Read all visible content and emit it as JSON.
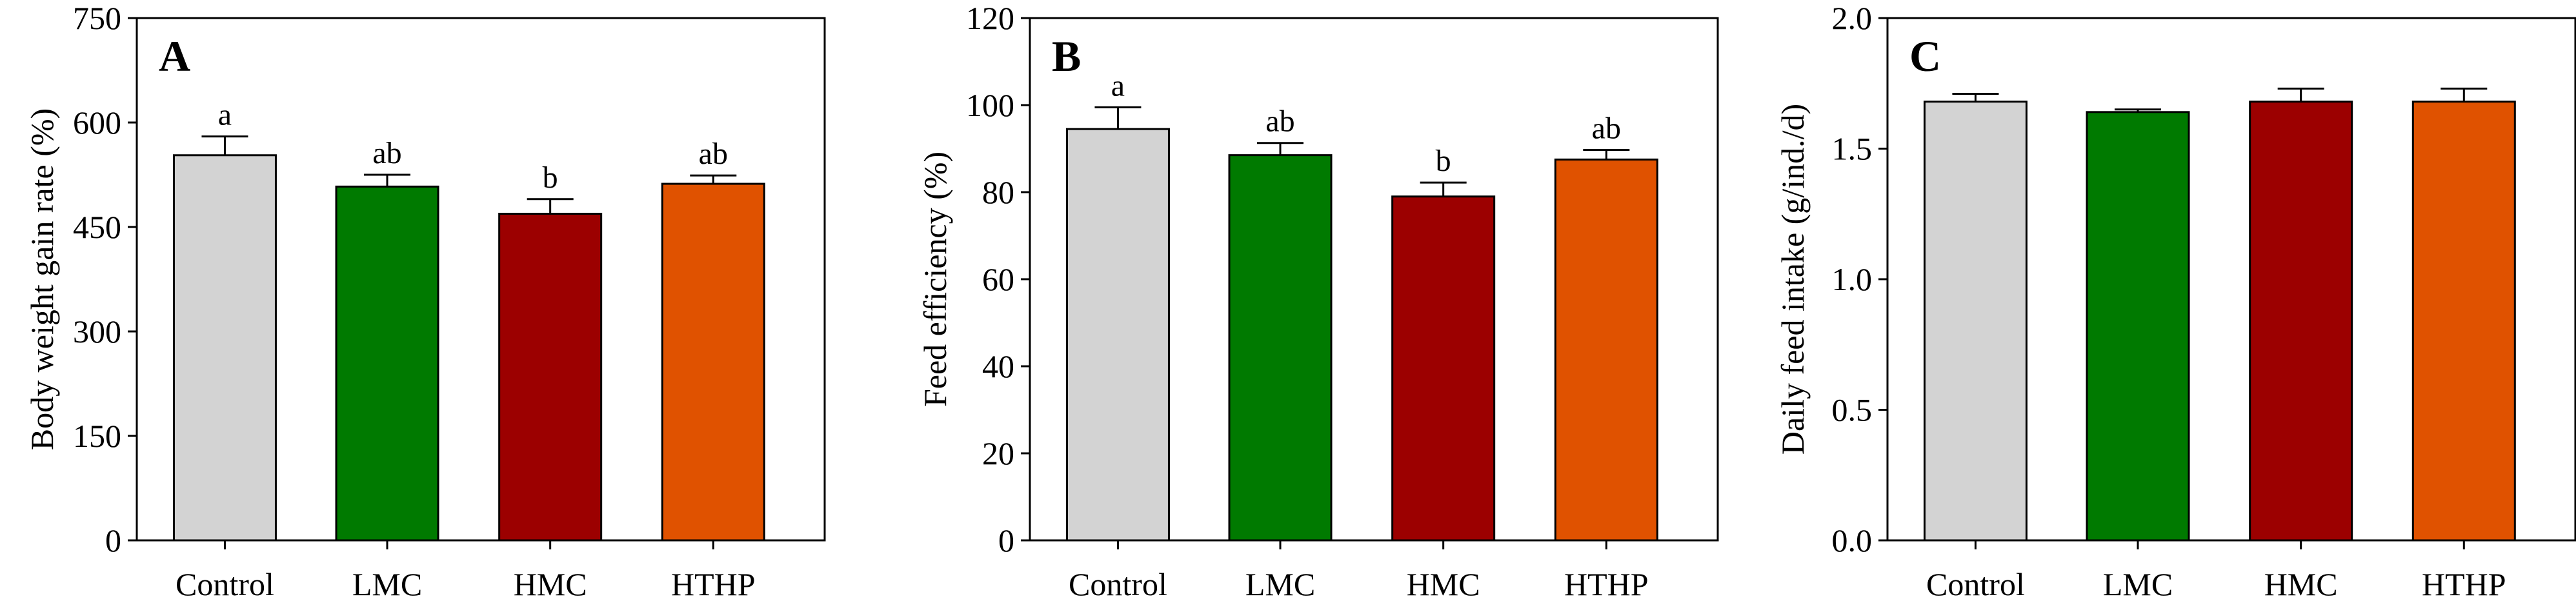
{
  "colors": {
    "Control": "#d3d3d3",
    "LMC": "#007a00",
    "HMC": "#9c0000",
    "HTHP": "#e05200",
    "stroke": "#000000"
  },
  "chart_data": [
    {
      "type": "bar",
      "panel_label": "A",
      "title": "",
      "xlabel": "",
      "ylabel": "Body weight gain rate (%)",
      "ylim": [
        0,
        750
      ],
      "yticks": [
        0,
        150,
        300,
        450,
        600,
        750
      ],
      "categories": [
        "Control",
        "LMC",
        "HMC",
        "HTHP"
      ],
      "values": [
        553,
        508,
        469,
        512
      ],
      "errors": [
        27,
        17,
        21,
        12
      ],
      "significance": [
        "a",
        "ab",
        "b",
        "ab"
      ]
    },
    {
      "type": "bar",
      "panel_label": "B",
      "title": "",
      "xlabel": "",
      "ylabel": "Feed efficiency (%)",
      "ylim": [
        0,
        120
      ],
      "yticks": [
        0,
        20,
        40,
        60,
        80,
        100,
        120
      ],
      "categories": [
        "Control",
        "LMC",
        "HMC",
        "HTHP"
      ],
      "values": [
        94.5,
        88.5,
        79,
        87.5
      ],
      "errors": [
        5,
        2.8,
        3.2,
        2.2
      ],
      "significance": [
        "a",
        "ab",
        "b",
        "ab"
      ]
    },
    {
      "type": "bar",
      "panel_label": "C",
      "title": "",
      "xlabel": "",
      "ylabel": "Daily feed intake (g/ind./d)",
      "ylim": [
        0,
        2.0
      ],
      "yticks": [
        "0.0",
        "0.5",
        "1.0",
        "1.5",
        "2.0"
      ],
      "categories": [
        "Control",
        "LMC",
        "HMC",
        "HTHP"
      ],
      "values": [
        1.68,
        1.64,
        1.68,
        1.68
      ],
      "errors": [
        0.03,
        0.01,
        0.05,
        0.05
      ],
      "significance": [
        "",
        "",
        "",
        ""
      ]
    }
  ]
}
